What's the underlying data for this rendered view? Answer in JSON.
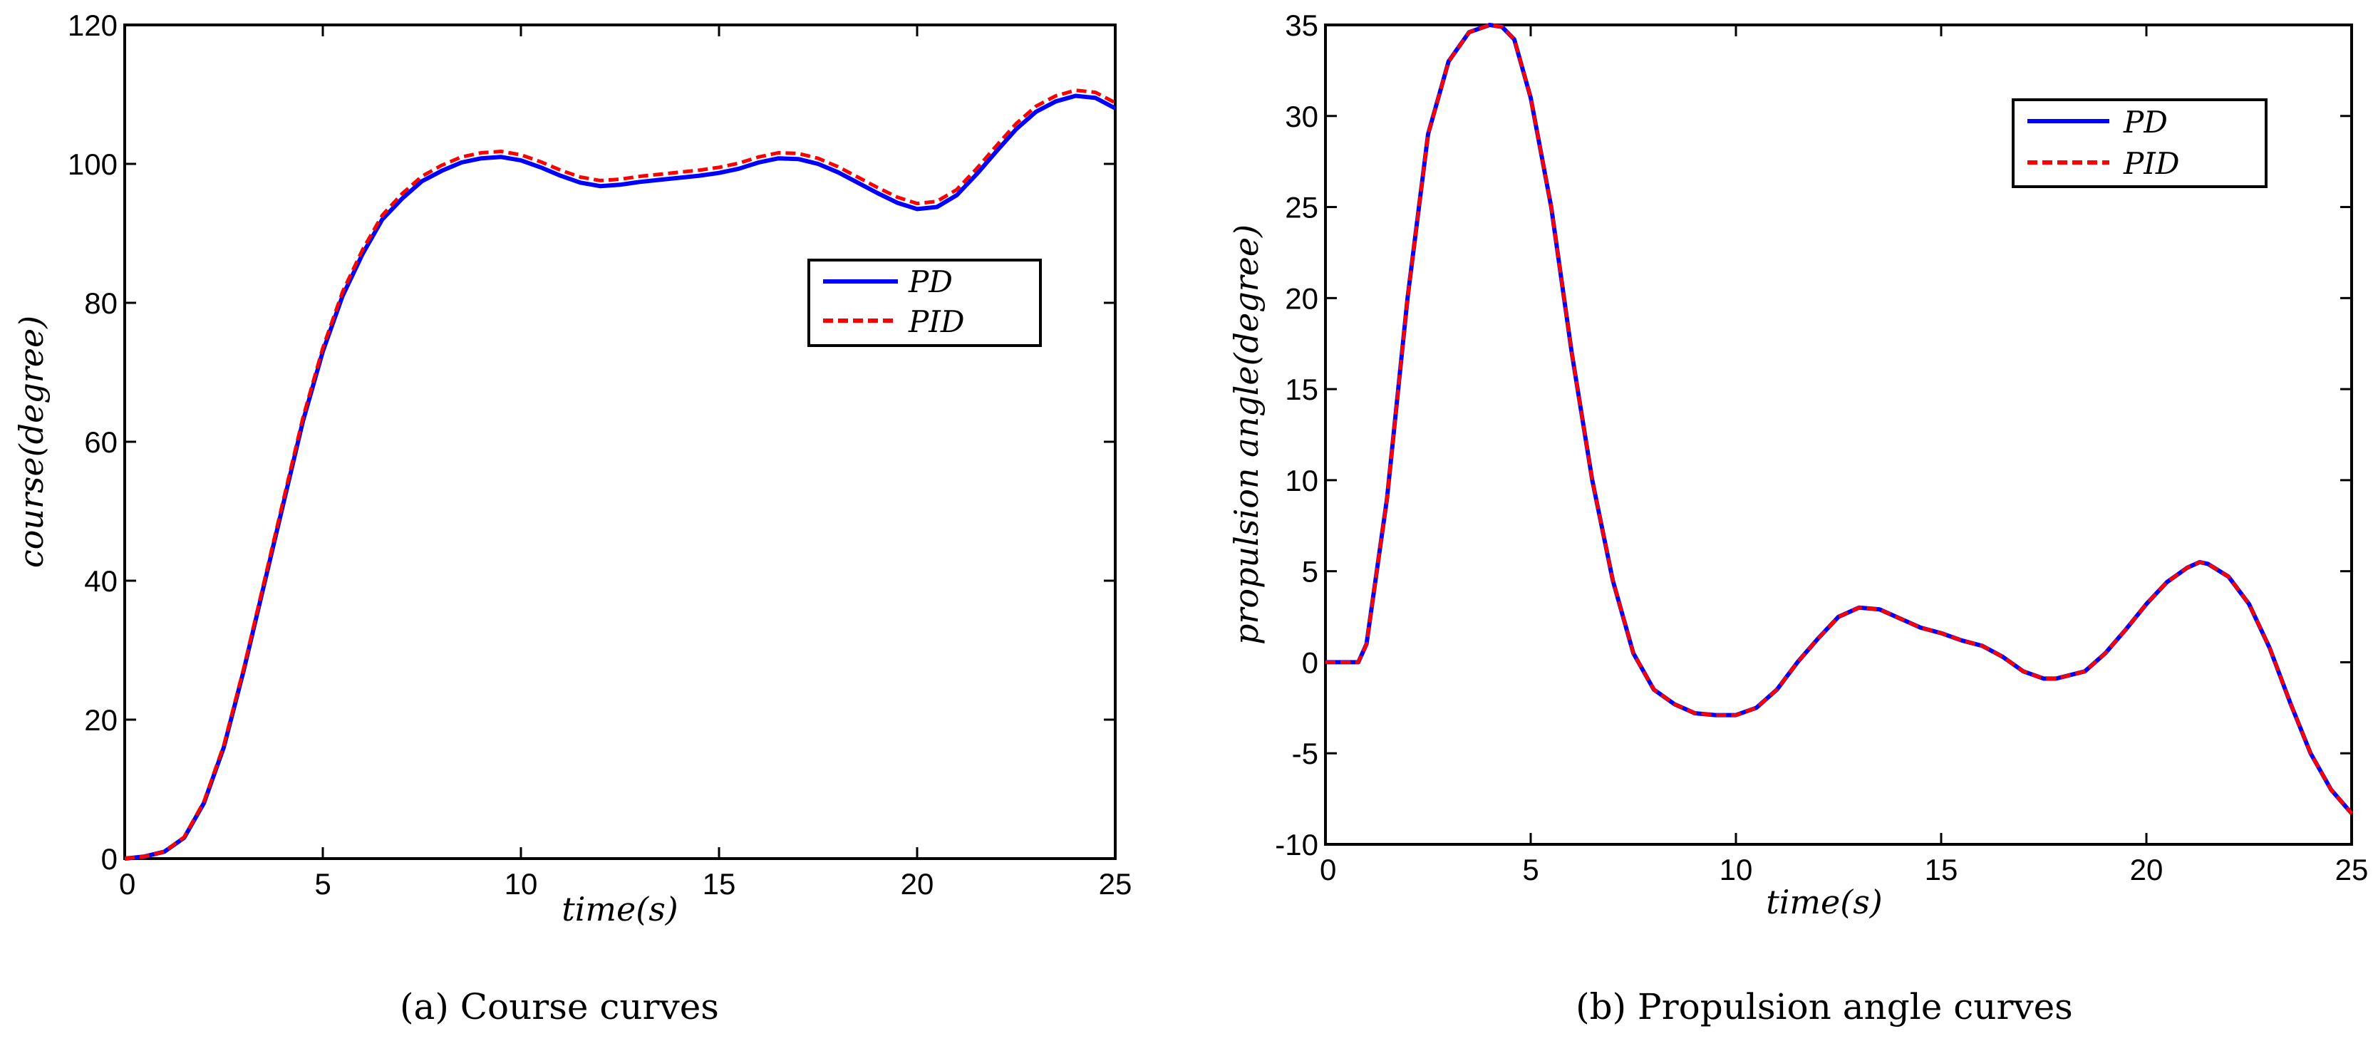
{
  "chart_data": [
    {
      "id": "a",
      "type": "line",
      "caption": "(a)  Course curves",
      "xlabel": "time(s)",
      "ylabel": "course(degree)",
      "xlim": [
        0,
        25
      ],
      "ylim": [
        0,
        120
      ],
      "xticks": [
        0,
        5,
        10,
        15,
        20,
        25
      ],
      "yticks": [
        0,
        20,
        40,
        60,
        80,
        100,
        120
      ],
      "grid": false,
      "legend_position": "center-right",
      "series": [
        {
          "name": "PD",
          "color": "#0000ff",
          "style": "solid",
          "x": [
            0,
            0.5,
            1,
            1.5,
            2,
            2.5,
            3,
            3.5,
            4,
            4.5,
            5,
            5.5,
            6,
            6.5,
            7,
            7.5,
            8,
            8.5,
            9,
            9.5,
            10,
            10.5,
            11,
            11.5,
            12,
            12.5,
            13,
            13.5,
            14,
            14.5,
            15,
            15.5,
            16,
            16.5,
            17,
            17.5,
            18,
            18.5,
            19,
            19.5,
            20,
            20.5,
            21,
            21.5,
            22,
            22.5,
            23,
            23.5,
            24,
            24.5,
            25
          ],
          "y": [
            0,
            0.3,
            1,
            3,
            8,
            16,
            27,
            39,
            51,
            63,
            73,
            81,
            87,
            92,
            95,
            97.5,
            99,
            100.2,
            100.8,
            101,
            100.5,
            99.5,
            98.3,
            97.3,
            96.8,
            97,
            97.4,
            97.7,
            98,
            98.3,
            98.7,
            99.3,
            100.2,
            100.8,
            100.7,
            100,
            98.8,
            97.3,
            95.8,
            94.4,
            93.5,
            93.8,
            95.5,
            98.5,
            101.8,
            105,
            107.5,
            109,
            109.8,
            109.5,
            108
          ]
        },
        {
          "name": "PID",
          "color": "#ff0000",
          "style": "dashed",
          "x": [
            0,
            0.5,
            1,
            1.5,
            2,
            2.5,
            3,
            3.5,
            4,
            4.5,
            5,
            5.5,
            6,
            6.5,
            7,
            7.5,
            8,
            8.5,
            9,
            9.5,
            10,
            10.5,
            11,
            11.5,
            12,
            12.5,
            13,
            13.5,
            14,
            14.5,
            15,
            15.5,
            16,
            16.5,
            17,
            17.5,
            18,
            18.5,
            19,
            19.5,
            20,
            20.5,
            21,
            21.5,
            22,
            22.5,
            23,
            23.5,
            24,
            24.5,
            25
          ],
          "y": [
            0,
            0.3,
            1,
            3.1,
            8.2,
            16.3,
            27.3,
            39.4,
            51.5,
            63.5,
            73.5,
            81.6,
            87.6,
            92.6,
            95.7,
            98.2,
            99.8,
            101,
            101.6,
            101.8,
            101.3,
            100.3,
            99.1,
            98.1,
            97.6,
            97.8,
            98.2,
            98.5,
            98.8,
            99.1,
            99.5,
            100.1,
            101,
            101.6,
            101.5,
            100.8,
            99.6,
            98.1,
            96.6,
            95.2,
            94.3,
            94.6,
            96.3,
            99.3,
            102.6,
            105.8,
            108.3,
            109.8,
            110.6,
            110.3,
            108.8
          ]
        }
      ]
    },
    {
      "id": "b",
      "type": "line",
      "caption": "(b)  Propulsion angle curves",
      "xlabel": "time(s)",
      "ylabel": "propulsion angle(degree)",
      "xlim": [
        0,
        25
      ],
      "ylim": [
        -10,
        35
      ],
      "xticks": [
        0,
        5,
        10,
        15,
        20,
        25
      ],
      "yticks": [
        -10,
        -5,
        0,
        5,
        10,
        15,
        20,
        25,
        30,
        35
      ],
      "grid": false,
      "legend_position": "top-right",
      "series": [
        {
          "name": "PD",
          "color": "#0000ff",
          "style": "solid",
          "x": [
            0,
            0.5,
            0.8,
            1,
            1.5,
            2,
            2.5,
            3,
            3.5,
            4,
            4.3,
            4.6,
            5,
            5.5,
            6,
            6.5,
            7,
            7.5,
            8,
            8.5,
            9,
            9.5,
            10,
            10.5,
            11,
            11.5,
            12,
            12.5,
            13,
            13.5,
            14,
            14.5,
            15,
            15.5,
            16,
            16.5,
            17,
            17.5,
            17.8,
            18.5,
            19,
            19.5,
            20,
            20.5,
            21,
            21.3,
            21.5,
            22,
            22.5,
            23,
            23.5,
            24,
            24.5,
            25
          ],
          "y": [
            0,
            0,
            0,
            1,
            9,
            20,
            29,
            33,
            34.6,
            35,
            34.9,
            34.2,
            31,
            25,
            17,
            10,
            4.5,
            0.5,
            -1.5,
            -2.3,
            -2.8,
            -2.9,
            -2.9,
            -2.5,
            -1.5,
            0,
            1.3,
            2.5,
            3.0,
            2.9,
            2.4,
            1.9,
            1.6,
            1.2,
            0.9,
            0.3,
            -0.5,
            -0.9,
            -0.9,
            -0.5,
            0.5,
            1.8,
            3.2,
            4.4,
            5.2,
            5.5,
            5.4,
            4.7,
            3.2,
            0.8,
            -2.2,
            -5,
            -7,
            -8.3
          ]
        },
        {
          "name": "PID",
          "color": "#ff0000",
          "style": "dashed",
          "x": [
            0,
            0.5,
            0.8,
            1,
            1.5,
            2,
            2.5,
            3,
            3.5,
            4,
            4.3,
            4.6,
            5,
            5.5,
            6,
            6.5,
            7,
            7.5,
            8,
            8.5,
            9,
            9.5,
            10,
            10.5,
            11,
            11.5,
            12,
            12.5,
            13,
            13.5,
            14,
            14.5,
            15,
            15.5,
            16,
            16.5,
            17,
            17.5,
            17.8,
            18.5,
            19,
            19.5,
            20,
            20.5,
            21,
            21.3,
            21.5,
            22,
            22.5,
            23,
            23.5,
            24,
            24.5,
            25
          ],
          "y": [
            0,
            0,
            0,
            1,
            9,
            20,
            29,
            33,
            34.6,
            35,
            34.9,
            34.2,
            31,
            25,
            17,
            10,
            4.5,
            0.5,
            -1.5,
            -2.3,
            -2.8,
            -2.9,
            -2.9,
            -2.5,
            -1.5,
            0,
            1.3,
            2.5,
            3.0,
            2.9,
            2.4,
            1.9,
            1.6,
            1.2,
            0.9,
            0.3,
            -0.5,
            -0.9,
            -0.9,
            -0.5,
            0.5,
            1.8,
            3.2,
            4.4,
            5.2,
            5.5,
            5.4,
            4.7,
            3.2,
            0.8,
            -2.2,
            -5,
            -7,
            -8.3
          ]
        }
      ]
    }
  ]
}
